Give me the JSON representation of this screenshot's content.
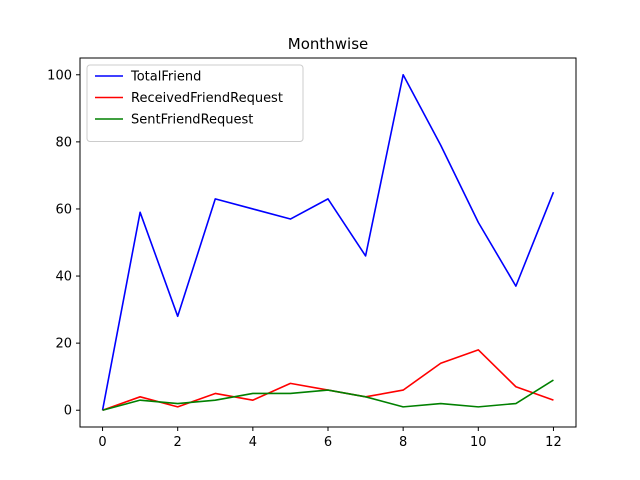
{
  "chart_data": {
    "type": "line",
    "title": "Monthwise",
    "xlabel": "",
    "ylabel": "",
    "x": [
      0,
      1,
      2,
      3,
      4,
      5,
      6,
      7,
      8,
      9,
      10,
      11,
      12
    ],
    "xlim": [
      -0.6,
      12.6
    ],
    "ylim": [
      -5,
      105
    ],
    "xticks": [
      0,
      2,
      4,
      6,
      8,
      10,
      12
    ],
    "yticks": [
      0,
      20,
      40,
      60,
      80,
      100
    ],
    "grid": false,
    "legend_position": "top-left",
    "series": [
      {
        "name": "TotalFriend",
        "color": "#0000ff",
        "values": [
          0,
          59,
          28,
          63,
          60,
          57,
          63,
          46,
          100,
          79,
          56,
          37,
          65
        ]
      },
      {
        "name": "ReceivedFriendRequest",
        "color": "#ff0000",
        "values": [
          0,
          4,
          1,
          5,
          3,
          8,
          6,
          4,
          6,
          14,
          18,
          7,
          3
        ]
      },
      {
        "name": "SentFriendRequest",
        "color": "#008000",
        "values": [
          0,
          3,
          2,
          3,
          5,
          5,
          6,
          4,
          1,
          2,
          1,
          2,
          9
        ]
      }
    ]
  }
}
